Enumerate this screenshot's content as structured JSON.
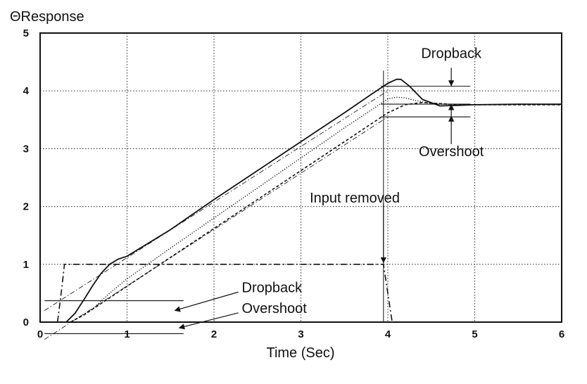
{
  "chart_data": {
    "type": "line",
    "ylabel": "ΘResponse",
    "xlabel": "Time (Sec)",
    "xlim": [
      0,
      6
    ],
    "ylim": [
      0,
      5
    ],
    "x_ticks": [
      "0",
      "1",
      "2",
      "3",
      "4",
      "5",
      "6"
    ],
    "y_ticks": [
      "0",
      "1",
      "2",
      "3",
      "4",
      "5"
    ],
    "grid": true,
    "series": [
      {
        "style": "solid",
        "x": [
          0.3,
          0.4,
          0.5,
          0.6,
          0.7,
          0.8,
          0.9,
          1.0,
          1.5,
          2.0,
          2.5,
          3.0,
          3.5,
          3.8,
          4.0,
          4.1,
          4.15,
          4.25,
          4.4,
          4.6,
          4.8,
          5.0,
          5.5,
          6.0
        ],
        "y": [
          0.0,
          0.15,
          0.38,
          0.62,
          0.84,
          1.0,
          1.09,
          1.14,
          1.6,
          2.12,
          2.62,
          3.12,
          3.62,
          3.93,
          4.13,
          4.2,
          4.2,
          4.08,
          3.85,
          3.74,
          3.75,
          3.76,
          3.77,
          3.77
        ]
      },
      {
        "style": "dotted",
        "x": [
          0.35,
          0.6,
          0.8,
          1.0,
          1.5,
          2.0,
          2.5,
          3.0,
          3.5,
          4.0,
          4.1,
          4.2,
          4.3,
          4.5,
          4.8,
          5.0,
          6.0
        ],
        "y": [
          0.0,
          0.22,
          0.5,
          0.75,
          1.28,
          1.8,
          2.32,
          2.84,
          3.36,
          3.86,
          3.89,
          3.88,
          3.84,
          3.78,
          3.76,
          3.76,
          3.76
        ]
      },
      {
        "style": "dashed",
        "x": [
          0.35,
          0.5,
          1.0,
          1.5,
          2.0,
          2.5,
          3.0,
          3.5,
          4.0,
          4.2,
          4.4,
          4.6,
          4.8,
          5.0,
          6.0
        ],
        "y": [
          0.0,
          0.12,
          0.62,
          1.12,
          1.62,
          2.12,
          2.62,
          3.12,
          3.62,
          3.76,
          3.8,
          3.78,
          3.76,
          3.76,
          3.76
        ]
      },
      {
        "style": "dash-dot",
        "x": [
          0.2,
          0.25,
          0.28,
          1.0,
          2.0,
          3.0,
          3.95,
          4.0,
          4.05
        ],
        "y": [
          0.0,
          0.6,
          1.0,
          1.0,
          1.0,
          1.0,
          1.0,
          0.5,
          0.0
        ]
      }
    ],
    "reference_lines": [
      {
        "x": [
          0.05,
          4.0
        ],
        "y": [
          0.2,
          4.0
        ]
      },
      {
        "x": [
          0.05,
          4.0
        ],
        "y": [
          -0.3,
          3.55
        ]
      }
    ],
    "level_lines": [
      {
        "x": [
          0.05,
          1.65
        ],
        "y": 0.37
      },
      {
        "x": [
          0.05,
          1.65
        ],
        "y": -0.2
      },
      {
        "x": [
          3.92,
          4.95
        ],
        "y": 4.08
      },
      {
        "x": [
          3.92,
          4.95
        ],
        "y": 3.77
      },
      {
        "x": [
          3.92,
          4.95
        ],
        "y": 3.55
      }
    ],
    "annotations": [
      {
        "text": "Dropback",
        "x": 4.73,
        "y": 4.57
      },
      {
        "text": "Overshoot",
        "x": 4.73,
        "y": 2.87
      },
      {
        "text": "Input removed",
        "x": 3.62,
        "y": 2.07
      },
      {
        "text": "Dropback",
        "x": 2.32,
        "y": 0.52
      },
      {
        "text": "Overshoot",
        "x": 2.32,
        "y": 0.16
      }
    ]
  }
}
